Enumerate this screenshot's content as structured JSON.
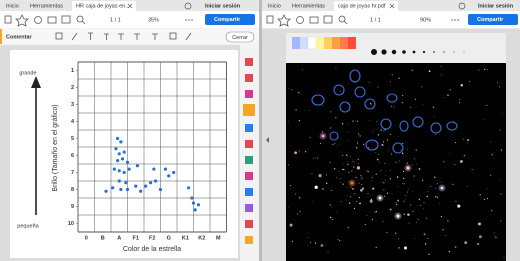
{
  "left_window": {
    "tabs": [
      "Inicio",
      "Herramientas",
      "HR caja de joyas en..."
    ],
    "sign_in": "Iniciar sesión",
    "page_count": "1 / 1",
    "zoom": "35%",
    "share": "Compartir",
    "comment_toolbar": {
      "label": "Comentar",
      "close": "Cerrar"
    },
    "chart": {
      "y_top_label": "grande",
      "y_bottom_label": "pequeña",
      "y_title": "Brillo (Tamaño en el gráfico)",
      "x_title": "Color de la estrella",
      "yticks": [
        1,
        2,
        3,
        4,
        5,
        6,
        7,
        8,
        9,
        10
      ],
      "xticks": [
        "0",
        "B",
        "A",
        "F1",
        "F2",
        "G",
        "K1",
        "K2",
        "M"
      ],
      "points": [
        [
          1.9,
          5.0
        ],
        [
          2.1,
          5.2
        ],
        [
          1.8,
          5.6
        ],
        [
          2.0,
          5.9
        ],
        [
          2.3,
          5.8
        ],
        [
          1.9,
          6.3
        ],
        [
          2.2,
          6.2
        ],
        [
          2.5,
          6.4
        ],
        [
          1.7,
          6.8
        ],
        [
          2.0,
          6.9
        ],
        [
          2.3,
          7.0
        ],
        [
          2.6,
          6.8
        ],
        [
          2.0,
          7.5
        ],
        [
          2.4,
          7.6
        ],
        [
          1.6,
          7.9
        ],
        [
          2.1,
          8.0
        ],
        [
          2.5,
          8.0
        ],
        [
          1.2,
          8.1
        ],
        [
          3.0,
          7.8
        ],
        [
          3.3,
          8.1
        ],
        [
          3.1,
          6.6
        ],
        [
          3.6,
          7.8
        ],
        [
          3.9,
          7.6
        ],
        [
          4.2,
          7.5
        ],
        [
          4.1,
          6.8
        ],
        [
          4.8,
          6.8
        ],
        [
          5.0,
          7.2
        ],
        [
          5.3,
          7.0
        ],
        [
          4.5,
          8.0
        ],
        [
          6.2,
          7.9
        ],
        [
          6.4,
          8.5
        ],
        [
          6.5,
          8.8
        ],
        [
          6.8,
          8.9
        ],
        [
          6.6,
          9.2
        ]
      ]
    }
  },
  "right_window": {
    "tabs": [
      "Inicio",
      "Herramientas",
      "caja de joyas hr.pdf"
    ],
    "sign_in": "Iniciar sesión",
    "page_count": "1 / 1",
    "zoom": "90%",
    "share": "Compartir"
  }
}
